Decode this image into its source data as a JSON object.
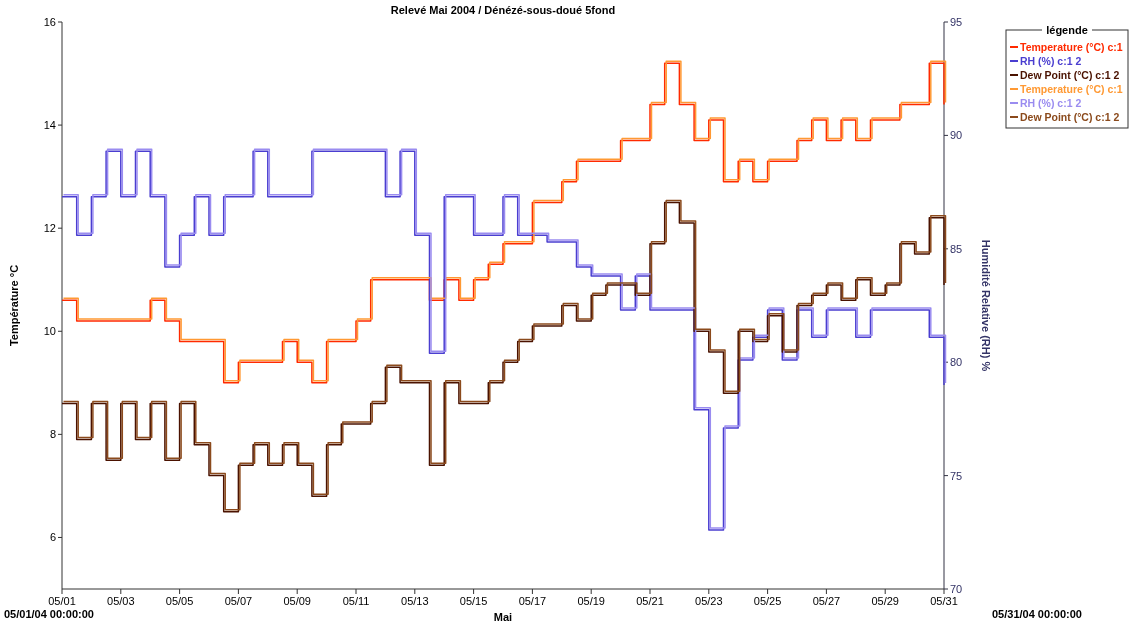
{
  "chart_data": {
    "type": "step",
    "title": "Relevé Mai 2004 / Dénézé-sous-doué  5fond",
    "xlabel": "Mai",
    "ylabel": "Température °C",
    "y2label": "Humidité Relative (RH) %",
    "legend_title": "légende",
    "legend": "right",
    "grid": false,
    "annotations": [
      "05/01/04 00:00:00",
      "05/31/04 00:00:00"
    ],
    "x": [
      "2004-05-01T00:00",
      "2004-05-01T12:00",
      "2004-05-02T00:00",
      "2004-05-02T12:00",
      "2004-05-03T00:00",
      "2004-05-03T12:00",
      "2004-05-04T00:00",
      "2004-05-04T12:00",
      "2004-05-05T00:00",
      "2004-05-05T12:00",
      "2004-05-06T00:00",
      "2004-05-06T12:00",
      "2004-05-07T00:00",
      "2004-05-07T12:00",
      "2004-05-08T00:00",
      "2004-05-08T12:00",
      "2004-05-09T00:00",
      "2004-05-09T12:00",
      "2004-05-10T00:00",
      "2004-05-10T12:00",
      "2004-05-11T00:00",
      "2004-05-11T12:00",
      "2004-05-12T00:00",
      "2004-05-12T12:00",
      "2004-05-13T00:00",
      "2004-05-13T12:00",
      "2004-05-14T00:00",
      "2004-05-14T12:00",
      "2004-05-15T00:00",
      "2004-05-15T12:00",
      "2004-05-16T00:00",
      "2004-05-16T12:00",
      "2004-05-17T00:00",
      "2004-05-17T12:00",
      "2004-05-18T00:00",
      "2004-05-18T12:00",
      "2004-05-19T00:00",
      "2004-05-19T12:00",
      "2004-05-20T00:00",
      "2004-05-20T12:00",
      "2004-05-21T00:00",
      "2004-05-21T12:00",
      "2004-05-22T00:00",
      "2004-05-22T12:00",
      "2004-05-23T00:00",
      "2004-05-23T12:00",
      "2004-05-24T00:00",
      "2004-05-24T12:00",
      "2004-05-25T00:00",
      "2004-05-25T12:00",
      "2004-05-26T00:00",
      "2004-05-26T12:00",
      "2004-05-27T00:00",
      "2004-05-27T12:00",
      "2004-05-28T00:00",
      "2004-05-28T12:00",
      "2004-05-29T00:00",
      "2004-05-29T12:00",
      "2004-05-30T00:00",
      "2004-05-30T12:00",
      "2004-05-31T00:00"
    ],
    "xlim": [
      "2004-05-01T00:00",
      "2004-05-31T00:00"
    ],
    "xticks": [
      {
        "value": "2004-05-01",
        "label": "05/01"
      },
      {
        "value": "2004-05-03",
        "label": "05/03"
      },
      {
        "value": "2004-05-05",
        "label": "05/05"
      },
      {
        "value": "2004-05-07",
        "label": "05/07"
      },
      {
        "value": "2004-05-09",
        "label": "05/09"
      },
      {
        "value": "2004-05-11",
        "label": "05/11"
      },
      {
        "value": "2004-05-13",
        "label": "05/13"
      },
      {
        "value": "2004-05-15",
        "label": "05/15"
      },
      {
        "value": "2004-05-17",
        "label": "05/17"
      },
      {
        "value": "2004-05-19",
        "label": "05/19"
      },
      {
        "value": "2004-05-21",
        "label": "05/21"
      },
      {
        "value": "2004-05-23",
        "label": "05/23"
      },
      {
        "value": "2004-05-25",
        "label": "05/25"
      },
      {
        "value": "2004-05-27",
        "label": "05/27"
      },
      {
        "value": "2004-05-29",
        "label": "05/29"
      },
      {
        "value": "2004-05-31",
        "label": "05/31"
      }
    ],
    "ylim": [
      5,
      16
    ],
    "yticks": [
      6,
      8,
      10,
      12,
      14,
      16
    ],
    "y2lim": [
      70,
      95
    ],
    "y2ticks": [
      70,
      75,
      80,
      85,
      90,
      95
    ],
    "series": [
      {
        "name": "Temperature (°C) c:1",
        "color": "#ff2a00",
        "values": [
          10.6,
          10.2,
          10.2,
          10.2,
          10.2,
          10.2,
          10.6,
          10.2,
          9.8,
          9.8,
          9.8,
          9.0,
          9.4,
          9.4,
          9.4,
          9.8,
          9.4,
          9.0,
          9.8,
          9.8,
          10.2,
          11.0,
          11.0,
          11.0,
          11.0,
          10.6,
          11.0,
          10.6,
          11.0,
          11.3,
          11.7,
          11.7,
          12.5,
          12.5,
          12.9,
          13.3,
          13.3,
          13.3,
          13.7,
          13.7,
          14.4,
          15.2,
          14.4,
          13.7,
          14.1,
          12.9,
          13.3,
          12.9,
          13.3,
          13.3,
          13.7,
          14.1,
          13.7,
          14.1,
          13.7,
          14.1,
          14.1,
          14.4,
          14.4,
          15.2,
          14.4
        ]
      },
      {
        "name": "RH (%) c:1 2",
        "color": "#4a3ed0",
        "axis": "y2",
        "values": [
          87.3,
          85.6,
          87.3,
          89.3,
          87.3,
          89.3,
          87.3,
          84.2,
          85.6,
          87.3,
          85.6,
          87.3,
          87.3,
          89.3,
          87.3,
          87.3,
          87.3,
          89.3,
          89.3,
          89.3,
          89.3,
          89.3,
          87.3,
          89.3,
          85.6,
          80.4,
          87.3,
          87.3,
          85.6,
          85.6,
          87.3,
          85.6,
          85.6,
          85.3,
          85.3,
          84.2,
          83.8,
          83.8,
          82.3,
          83.8,
          82.3,
          82.3,
          82.3,
          77.9,
          72.6,
          77.1,
          80.1,
          81.1,
          82.3,
          80.1,
          82.3,
          81.1,
          82.3,
          82.3,
          81.1,
          82.3,
          82.3,
          82.3,
          82.3,
          81.1,
          79.0
        ]
      },
      {
        "name": "Dew Point (°C) c:1 2",
        "color": "#4a1200",
        "values": [
          8.6,
          7.9,
          8.6,
          7.5,
          8.6,
          7.9,
          8.6,
          7.5,
          8.6,
          7.8,
          7.2,
          6.5,
          7.4,
          7.8,
          7.4,
          7.8,
          7.4,
          6.8,
          7.8,
          8.2,
          8.2,
          8.6,
          9.3,
          9.0,
          9.0,
          7.4,
          9.0,
          8.6,
          8.6,
          9.0,
          9.4,
          9.8,
          10.1,
          10.1,
          10.5,
          10.2,
          10.7,
          10.9,
          10.9,
          10.7,
          11.7,
          12.5,
          12.1,
          10.0,
          9.6,
          8.8,
          10.0,
          9.8,
          10.3,
          9.6,
          10.5,
          10.7,
          10.9,
          10.6,
          11.0,
          10.7,
          10.9,
          11.7,
          11.5,
          12.2,
          10.9
        ]
      },
      {
        "name": "Temperature (°C) c:1",
        "color": "#ff9933",
        "values": [
          10.6,
          10.2,
          10.2,
          10.2,
          10.2,
          10.2,
          10.6,
          10.2,
          9.8,
          9.8,
          9.8,
          9.0,
          9.4,
          9.4,
          9.4,
          9.8,
          9.4,
          9.0,
          9.8,
          9.8,
          10.2,
          11.0,
          11.0,
          11.0,
          11.0,
          10.6,
          11.0,
          10.6,
          11.0,
          11.3,
          11.7,
          11.7,
          12.5,
          12.5,
          12.9,
          13.3,
          13.3,
          13.3,
          13.7,
          13.7,
          14.4,
          15.2,
          14.4,
          13.7,
          14.1,
          12.9,
          13.3,
          12.9,
          13.3,
          13.3,
          13.7,
          14.1,
          13.7,
          14.1,
          13.7,
          14.1,
          14.1,
          14.4,
          14.4,
          15.2,
          14.4
        ]
      },
      {
        "name": "RH (%) c:1 2",
        "color": "#9a8cf0",
        "axis": "y2",
        "values": [
          87.3,
          85.6,
          87.3,
          89.3,
          87.3,
          89.3,
          87.3,
          84.2,
          85.6,
          87.3,
          85.6,
          87.3,
          87.3,
          89.3,
          87.3,
          87.3,
          87.3,
          89.3,
          89.3,
          89.3,
          89.3,
          89.3,
          87.3,
          89.3,
          85.6,
          80.4,
          87.3,
          87.3,
          85.6,
          85.6,
          87.3,
          85.6,
          85.6,
          85.3,
          85.3,
          84.2,
          83.8,
          83.8,
          82.3,
          83.8,
          82.3,
          82.3,
          82.3,
          77.9,
          72.6,
          77.1,
          80.1,
          81.1,
          82.3,
          80.1,
          82.3,
          81.1,
          82.3,
          82.3,
          81.1,
          82.3,
          82.3,
          82.3,
          82.3,
          81.1,
          79.0
        ]
      },
      {
        "name": "Dew Point (°C) c:1 2",
        "color": "#8b4a1c",
        "values": [
          8.6,
          7.9,
          8.6,
          7.5,
          8.6,
          7.9,
          8.6,
          7.5,
          8.6,
          7.8,
          7.2,
          6.5,
          7.4,
          7.8,
          7.4,
          7.8,
          7.4,
          6.8,
          7.8,
          8.2,
          8.2,
          8.6,
          9.3,
          9.0,
          9.0,
          7.4,
          9.0,
          8.6,
          8.6,
          9.0,
          9.4,
          9.8,
          10.1,
          10.1,
          10.5,
          10.2,
          10.7,
          10.9,
          10.9,
          10.7,
          11.7,
          12.5,
          12.1,
          10.0,
          9.6,
          8.8,
          10.0,
          9.8,
          10.3,
          9.6,
          10.5,
          10.7,
          10.9,
          10.6,
          11.0,
          10.7,
          10.9,
          11.7,
          11.5,
          12.2,
          10.9
        ]
      }
    ]
  }
}
